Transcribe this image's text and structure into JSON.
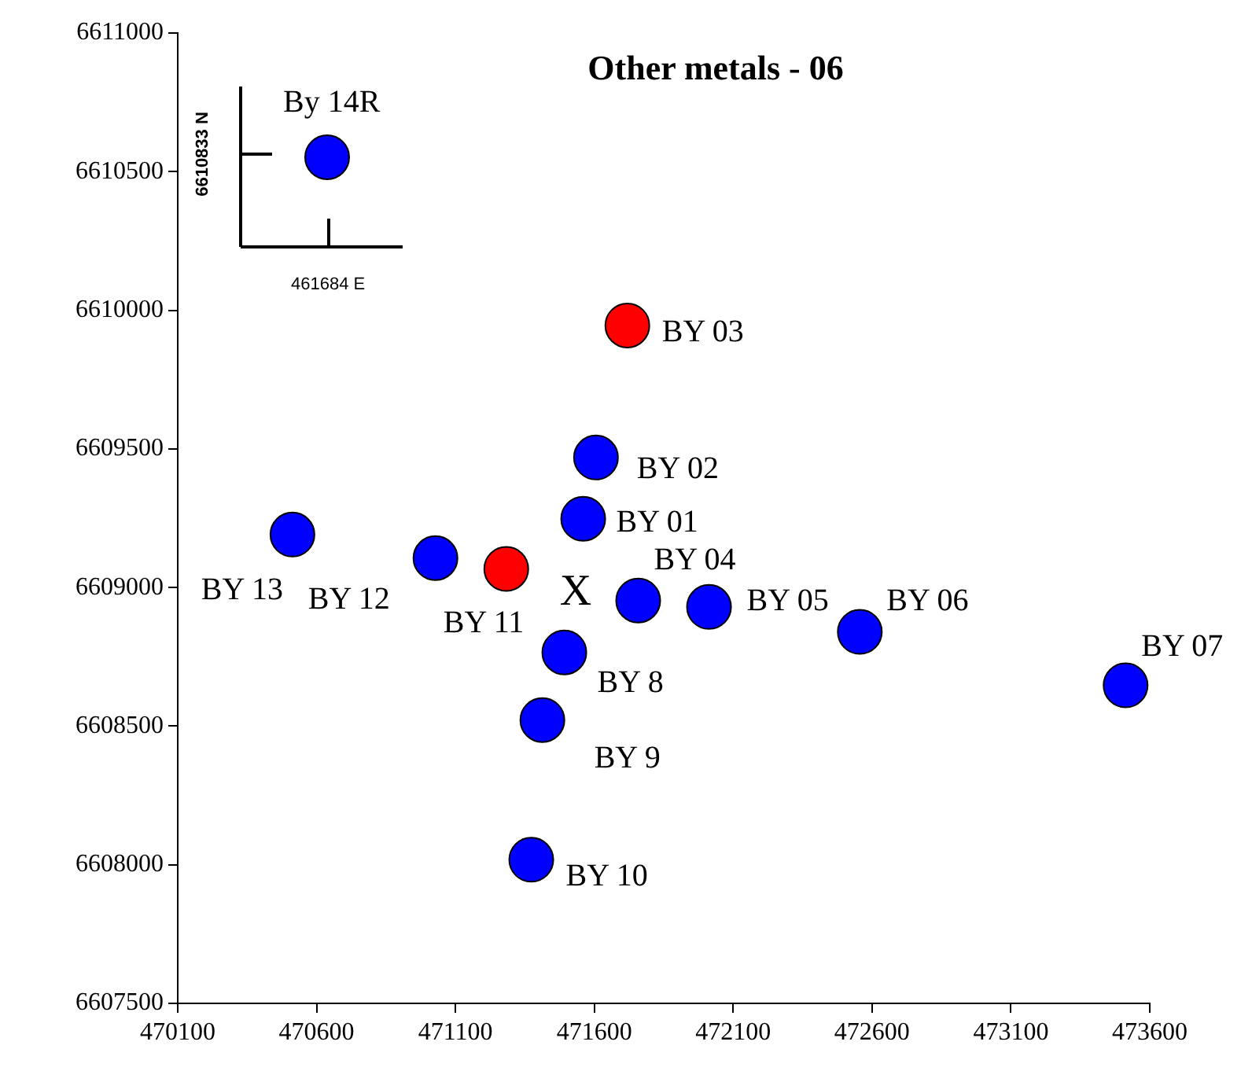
{
  "chart_data": {
    "type": "scatter",
    "title": "Other metals - 06",
    "x": [
      470638,
      471719,
      471606,
      471560,
      470513,
      471028,
      471283,
      471758,
      472013,
      472556,
      473513,
      471492,
      471413,
      471373
    ],
    "values": [
      6610552,
      6609945,
      6609469,
      6609248,
      6609191,
      6609106,
      6609067,
      6608953,
      6608930,
      6608840,
      6608647,
      6608766,
      6608522,
      6608018
    ],
    "colors": [
      "#0000ff",
      "#ff0000",
      "#0000ff",
      "#0000ff",
      "#0000ff",
      "#0000ff",
      "#ff0000",
      "#0000ff",
      "#0000ff",
      "#0000ff",
      "#0000ff",
      "#0000ff",
      "#0000ff",
      "#0000ff"
    ],
    "value_labels": [
      "By 14R",
      "BY 03",
      "BY 02",
      "BY 01",
      "BY 13",
      "BY 12",
      "BY 11",
      "BY 04",
      "BY 05",
      "BY 06",
      "BY 07",
      "BY 8",
      "BY 9",
      "BY 10"
    ],
    "marker": "circle",
    "xlim": [
      470100,
      473600
    ],
    "xticks": [
      470100,
      470600,
      471100,
      471600,
      472100,
      472600,
      473100,
      473600
    ],
    "ylim": [
      6607500,
      6611000
    ],
    "yticks": [
      6607500,
      6608000,
      6608500,
      6609000,
      6609500,
      6610000,
      6610500,
      6611000
    ],
    "grid": false,
    "legend": false,
    "annotations": [
      "6610833 N",
      "461684 E",
      "X"
    ]
  }
}
